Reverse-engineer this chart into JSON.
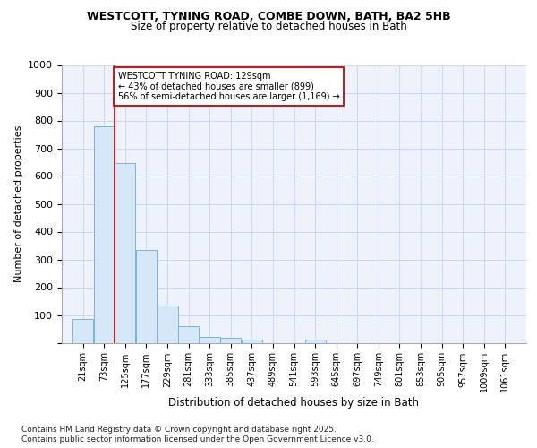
{
  "title1": "WESTCOTT, TYNING ROAD, COMBE DOWN, BATH, BA2 5HB",
  "title2": "Size of property relative to detached houses in Bath",
  "xlabel": "Distribution of detached houses by size in Bath",
  "ylabel": "Number of detached properties",
  "bar_edges": [
    21,
    73,
    125,
    177,
    229,
    281,
    333,
    385,
    437,
    489,
    541,
    593,
    645,
    697,
    749,
    801,
    853,
    905,
    957,
    1009,
    1061
  ],
  "bar_heights": [
    85,
    780,
    648,
    335,
    135,
    60,
    22,
    18,
    10,
    0,
    0,
    10,
    0,
    0,
    0,
    0,
    0,
    0,
    0,
    0
  ],
  "bar_color": "#d6e8f7",
  "bar_edgecolor": "#7ab3d9",
  "vline_x": 125,
  "vline_color": "#cc0000",
  "annotation_text": "WESTCOTT TYNING ROAD: 129sqm\n← 43% of detached houses are smaller (899)\n56% of semi-detached houses are larger (1,169) →",
  "annotation_box_color": "#ffffff",
  "annotation_box_edgecolor": "#cc0000",
  "ylim": [
    0,
    1000
  ],
  "yticks": [
    0,
    100,
    200,
    300,
    400,
    500,
    600,
    700,
    800,
    900,
    1000
  ],
  "bg_color": "#eef2fb",
  "grid_color": "#c8d4e8",
  "footer1": "Contains HM Land Registry data © Crown copyright and database right 2025.",
  "footer2": "Contains public sector information licensed under the Open Government Licence v3.0."
}
